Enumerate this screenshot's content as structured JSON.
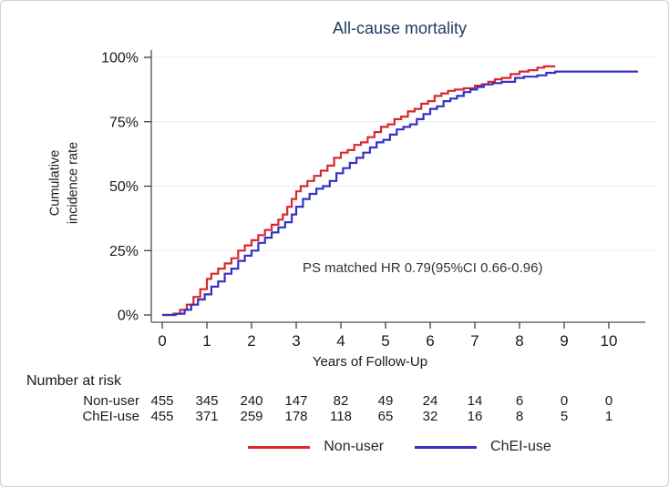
{
  "figure": {
    "title": "All-cause mortality",
    "annotation": "PS matched HR 0.79(95%CI 0.66-0.96)"
  },
  "chart_data": {
    "type": "line",
    "subtype": "kaplan-meier-step-cumulative-incidence",
    "title": "All-cause mortality",
    "xlabel": "Years of Follow-Up",
    "ylabel": "Cumulative incidence rate",
    "ylabel_lines": "Cumulative\nincidence rate",
    "x_ticks": [
      0,
      1,
      2,
      3,
      4,
      5,
      6,
      7,
      8,
      9,
      10
    ],
    "y_ticks": [
      "0%",
      "25%",
      "50%",
      "75%",
      "100%"
    ],
    "y_tick_values": [
      0,
      25,
      50,
      75,
      100
    ],
    "xlim": [
      0,
      10.8
    ],
    "ylim": [
      0,
      100
    ],
    "grid": "horizontal",
    "grid_color": "#e9eef2",
    "axis_color": "#4d4d4d",
    "annotation": "PS matched HR 0.79(95%CI 0.66-0.96)",
    "series": [
      {
        "name": "Non-user",
        "color": "#d7292e",
        "points": [
          [
            0,
            0
          ],
          [
            0.25,
            0.5
          ],
          [
            0.4,
            2
          ],
          [
            0.55,
            4
          ],
          [
            0.7,
            7
          ],
          [
            0.85,
            10
          ],
          [
            1.0,
            14
          ],
          [
            1.1,
            16
          ],
          [
            1.25,
            18
          ],
          [
            1.4,
            20
          ],
          [
            1.55,
            22
          ],
          [
            1.7,
            25
          ],
          [
            1.85,
            27
          ],
          [
            2.0,
            29
          ],
          [
            2.15,
            31
          ],
          [
            2.3,
            33
          ],
          [
            2.45,
            35
          ],
          [
            2.6,
            37
          ],
          [
            2.7,
            39
          ],
          [
            2.8,
            42
          ],
          [
            2.9,
            45
          ],
          [
            3.0,
            48
          ],
          [
            3.1,
            50
          ],
          [
            3.25,
            52
          ],
          [
            3.4,
            54
          ],
          [
            3.55,
            56
          ],
          [
            3.7,
            58
          ],
          [
            3.85,
            61
          ],
          [
            4.0,
            63
          ],
          [
            4.15,
            64
          ],
          [
            4.3,
            66
          ],
          [
            4.45,
            67
          ],
          [
            4.6,
            69
          ],
          [
            4.75,
            71
          ],
          [
            4.9,
            73
          ],
          [
            5.05,
            74
          ],
          [
            5.2,
            76
          ],
          [
            5.35,
            77
          ],
          [
            5.5,
            79
          ],
          [
            5.65,
            80
          ],
          [
            5.8,
            82
          ],
          [
            5.95,
            83
          ],
          [
            6.1,
            85
          ],
          [
            6.25,
            86
          ],
          [
            6.4,
            87
          ],
          [
            6.55,
            87.5
          ],
          [
            6.75,
            88
          ],
          [
            7.0,
            89
          ],
          [
            7.15,
            89.5
          ],
          [
            7.3,
            90.5
          ],
          [
            7.45,
            91.5
          ],
          [
            7.6,
            92
          ],
          [
            7.8,
            93.5
          ],
          [
            8.0,
            94.5
          ],
          [
            8.2,
            95
          ],
          [
            8.4,
            96
          ],
          [
            8.55,
            96.5
          ],
          [
            8.8,
            96.5
          ]
        ]
      },
      {
        "name": "ChEI-use",
        "color": "#3431c4",
        "points": [
          [
            0,
            0
          ],
          [
            0.3,
            0.5
          ],
          [
            0.5,
            2
          ],
          [
            0.65,
            4
          ],
          [
            0.8,
            6
          ],
          [
            0.95,
            8
          ],
          [
            1.1,
            11
          ],
          [
            1.25,
            13
          ],
          [
            1.4,
            16
          ],
          [
            1.55,
            18
          ],
          [
            1.7,
            21
          ],
          [
            1.85,
            23
          ],
          [
            2.0,
            25
          ],
          [
            2.15,
            28
          ],
          [
            2.3,
            30
          ],
          [
            2.45,
            32
          ],
          [
            2.6,
            34
          ],
          [
            2.75,
            36
          ],
          [
            2.9,
            39
          ],
          [
            3.0,
            42
          ],
          [
            3.15,
            45
          ],
          [
            3.3,
            47
          ],
          [
            3.45,
            49
          ],
          [
            3.6,
            50
          ],
          [
            3.75,
            52
          ],
          [
            3.9,
            55
          ],
          [
            4.05,
            57
          ],
          [
            4.2,
            59
          ],
          [
            4.35,
            61
          ],
          [
            4.5,
            63
          ],
          [
            4.65,
            65
          ],
          [
            4.8,
            67
          ],
          [
            4.95,
            68
          ],
          [
            5.1,
            70
          ],
          [
            5.25,
            72
          ],
          [
            5.4,
            73
          ],
          [
            5.55,
            74
          ],
          [
            5.7,
            76
          ],
          [
            5.85,
            78
          ],
          [
            6.0,
            80
          ],
          [
            6.15,
            81
          ],
          [
            6.3,
            83
          ],
          [
            6.45,
            84
          ],
          [
            6.6,
            85
          ],
          [
            6.75,
            86.5
          ],
          [
            6.9,
            87.5
          ],
          [
            7.05,
            88.5
          ],
          [
            7.2,
            89.5
          ],
          [
            7.4,
            90
          ],
          [
            7.6,
            90.5
          ],
          [
            7.9,
            92
          ],
          [
            8.1,
            92.5
          ],
          [
            8.4,
            93
          ],
          [
            8.6,
            94
          ],
          [
            8.8,
            94.5
          ],
          [
            10.65,
            94.5
          ]
        ]
      }
    ],
    "legend_position": "bottom-center"
  },
  "risk_table": {
    "header": "Number at risk",
    "rows": [
      {
        "label": "Non-user",
        "values": [
          455,
          345,
          240,
          147,
          82,
          49,
          24,
          14,
          6,
          0,
          0
        ]
      },
      {
        "label": "ChEI-use",
        "values": [
          455,
          371,
          259,
          178,
          118,
          65,
          32,
          16,
          8,
          5,
          1
        ]
      }
    ]
  }
}
